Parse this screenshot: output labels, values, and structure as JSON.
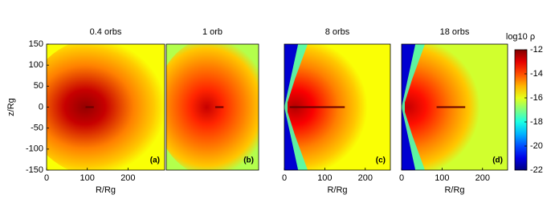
{
  "chart_data": [
    {
      "type": "heatmap",
      "title": "0.4 orbs",
      "xlabel": "R/Rg",
      "ylabel": "z/Rg",
      "xlim": [
        0,
        290
      ],
      "xticks": [
        0,
        100,
        200
      ],
      "ylim": [
        -150,
        150
      ],
      "yticks": [
        -150,
        -100,
        -50,
        0,
        50,
        100,
        150
      ],
      "panel_label": "(a)"
    },
    {
      "type": "heatmap",
      "title": "1 orb",
      "xlim": [
        0,
        230
      ],
      "ylim": [
        -150,
        150
      ],
      "panel_label": "(b)"
    },
    {
      "type": "heatmap",
      "title": "8 orbs",
      "xlabel": "R/Rg",
      "xlim": [
        0,
        262
      ],
      "xticks": [
        0,
        100,
        200
      ],
      "ylim": [
        -150,
        150
      ],
      "panel_label": "(c)"
    },
    {
      "type": "heatmap",
      "title": "18 orbs",
      "xlabel": "R/Rg",
      "xlim": [
        0,
        262
      ],
      "xticks": [
        0,
        100,
        200
      ],
      "ylim": [
        -150,
        150
      ],
      "panel_label": "(d)"
    },
    {
      "type": "colorbar",
      "title": "log10 ρ",
      "colormap": "jet",
      "ylim": [
        -22,
        -12
      ],
      "yticks": [
        -22,
        -20,
        -18,
        -16,
        -14,
        -12
      ]
    }
  ]
}
